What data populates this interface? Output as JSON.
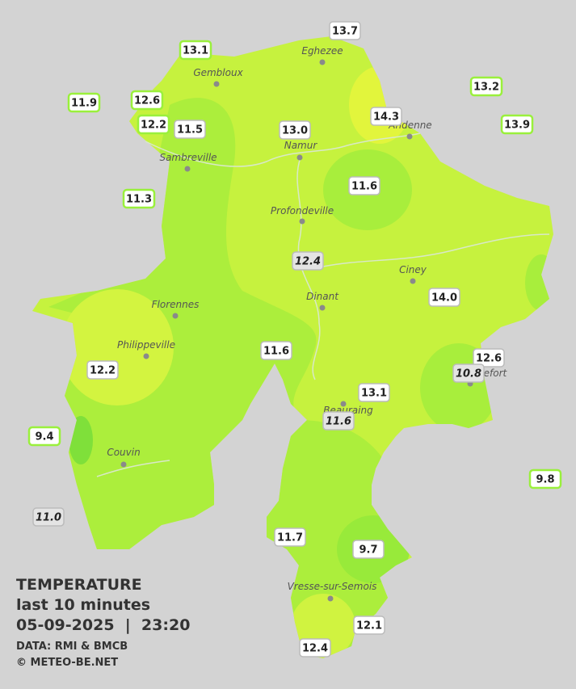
{
  "cities": [
    "Eghezee",
    "Gembloux",
    "Andenne",
    "Namur",
    "Sambreville",
    "Profondeville",
    "Ciney",
    "Dinant",
    "Florennes",
    "Philippeville",
    "Rochefort",
    "Beauraing",
    "Couvin",
    "Vresse-sur-Semois"
  ],
  "stations": [
    "13.1",
    "13.7",
    "11.9",
    "12.6",
    "12.2",
    "11.5",
    "13.0",
    "14.3",
    "13.2",
    "13.9",
    "11.3",
    "11.6",
    "12.4",
    "14.0",
    "11.6",
    "12.2",
    "12.6",
    "10.8",
    "13.1",
    "11.6",
    "9.4",
    "9.8",
    "11.0",
    "11.7",
    "9.7",
    "12.1",
    "12.4"
  ],
  "legend": {
    "title": "TEMPERATURE",
    "subtitle": "last 10 minutes",
    "datetime": "05-09-2025  |  23:20",
    "source": "DATA: RMI & BMCB",
    "copyright": "© METEO-BE.NET"
  }
}
